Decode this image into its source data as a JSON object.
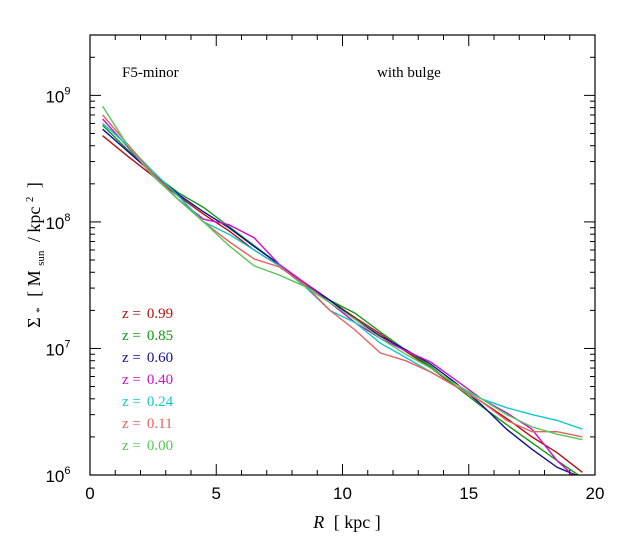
{
  "chart_data": {
    "type": "line",
    "title": "",
    "xlabel_italic": "R",
    "xlabel_rest": "[ kpc ]",
    "ylabel": {
      "sigma": "Σ",
      "star": "*",
      "open": "[ M",
      "sub": "sun",
      "mid": "/ kpc",
      "sup": "2",
      "close": "]"
    },
    "xlim": [
      0,
      20
    ],
    "ylim": [
      1000000,
      3000000000
    ],
    "yscale": "log",
    "x_ticks": [
      "0",
      "5",
      "10",
      "15",
      "20"
    ],
    "y_ticks": [
      {
        "base": "10",
        "exp": "6"
      },
      {
        "base": "10",
        "exp": "7"
      },
      {
        "base": "10",
        "exp": "8"
      },
      {
        "base": "10",
        "exp": "9"
      }
    ],
    "annotations": {
      "left": "F5-minor",
      "right": "with bulge"
    },
    "legend_prefix": "z =",
    "legend_placement": "lower-left",
    "series": [
      {
        "name": "0.99",
        "color": "#b01010",
        "x": [
          0.5,
          1.5,
          2.5,
          3.5,
          4.5,
          5.5,
          6.5,
          7.5,
          8.5,
          9.5,
          10.5,
          11.5,
          12.5,
          13.5,
          14.5,
          15.5,
          16.5,
          17.5,
          18.5,
          19.5
        ],
        "y": [
          480000000,
          330000000,
          230000000,
          160000000,
          115000000,
          85000000,
          60000000,
          45000000,
          33000000,
          24000000,
          17500000,
          13000000,
          9500000,
          7000000,
          5000000,
          3800000,
          2800000,
          2000000,
          1500000,
          1050000
        ]
      },
      {
        "name": "0.85",
        "color": "#119911",
        "x": [
          0.5,
          1.5,
          2.5,
          3.5,
          4.5,
          5.5,
          6.5,
          7.5,
          8.5,
          9.5,
          10.5,
          11.5,
          12.5,
          13.5,
          14.5,
          15.5,
          16.5,
          17.5,
          18.5,
          19.5
        ],
        "y": [
          580000000,
          370000000,
          240000000,
          170000000,
          130000000,
          92000000,
          65000000,
          46000000,
          32000000,
          24000000,
          19000000,
          13500000,
          9700000,
          7200000,
          5000000,
          3500000,
          2500000,
          1800000,
          1300000,
          950000
        ]
      },
      {
        "name": "0.60",
        "color": "#101090",
        "x": [
          0.5,
          1.5,
          2.5,
          3.5,
          4.5,
          5.5,
          6.5,
          7.5,
          8.5,
          9.5,
          10.5,
          11.5,
          12.5,
          13.5,
          14.5,
          15.5,
          16.5,
          17.5,
          18.5,
          19.5
        ],
        "y": [
          540000000,
          360000000,
          240000000,
          165000000,
          120000000,
          90000000,
          64000000,
          46000000,
          33000000,
          24000000,
          17000000,
          12500000,
          9800000,
          7500000,
          5300000,
          3600000,
          2300000,
          1600000,
          1150000,
          950000
        ]
      },
      {
        "name": "0.40",
        "color": "#cc10cc",
        "x": [
          0.5,
          1.5,
          2.5,
          3.5,
          4.5,
          5.5,
          6.5,
          7.5,
          8.5,
          9.5,
          10.5,
          11.5,
          12.5,
          13.5,
          14.5,
          15.5,
          16.5,
          17.5,
          18.5,
          19.5
        ],
        "y": [
          650000000,
          390000000,
          230000000,
          150000000,
          105000000,
          95000000,
          75000000,
          46000000,
          33000000,
          23000000,
          16000000,
          12000000,
          9600000,
          7800000,
          5600000,
          4000000,
          3100000,
          2300000,
          1300000,
          850000
        ]
      },
      {
        "name": "0.24",
        "color": "#10c8c8",
        "x": [
          0.5,
          1.5,
          2.5,
          3.5,
          4.5,
          5.5,
          6.5,
          7.5,
          8.5,
          9.5,
          10.5,
          11.5,
          12.5,
          13.5,
          14.5,
          15.5,
          16.5,
          17.5,
          18.5,
          19.5
        ],
        "y": [
          600000000,
          400000000,
          250000000,
          160000000,
          100000000,
          80000000,
          60000000,
          45000000,
          31000000,
          20000000,
          16000000,
          11000000,
          8500000,
          6500000,
          5000000,
          4000000,
          3400000,
          3000000,
          2700000,
          2300000
        ]
      },
      {
        "name": "0.11",
        "color": "#e86060",
        "x": [
          0.5,
          1.5,
          2.5,
          3.5,
          4.5,
          5.5,
          6.5,
          7.5,
          8.5,
          9.5,
          10.5,
          11.5,
          12.5,
          13.5,
          14.5,
          15.5,
          16.5,
          17.5,
          18.5,
          19.5
        ],
        "y": [
          700000000,
          410000000,
          240000000,
          150000000,
          100000000,
          70000000,
          51000000,
          44000000,
          32000000,
          20000000,
          14000000,
          9200000,
          8000000,
          6500000,
          5000000,
          3800000,
          2700000,
          2200000,
          2200000,
          2000000
        ]
      },
      {
        "name": "0.00",
        "color": "#55c855",
        "x": [
          0.5,
          1.5,
          2.5,
          3.5,
          4.5,
          5.5,
          6.5,
          7.5,
          8.5,
          9.5,
          10.5,
          11.5,
          12.5,
          13.5,
          14.5,
          15.5,
          16.5,
          17.5,
          18.5,
          19.5
        ],
        "y": [
          820000000,
          400000000,
          230000000,
          150000000,
          100000000,
          65000000,
          45000000,
          38000000,
          31000000,
          23000000,
          17000000,
          12000000,
          9000000,
          7000000,
          5200000,
          4000000,
          3000000,
          2400000,
          2100000,
          1900000
        ]
      }
    ]
  }
}
